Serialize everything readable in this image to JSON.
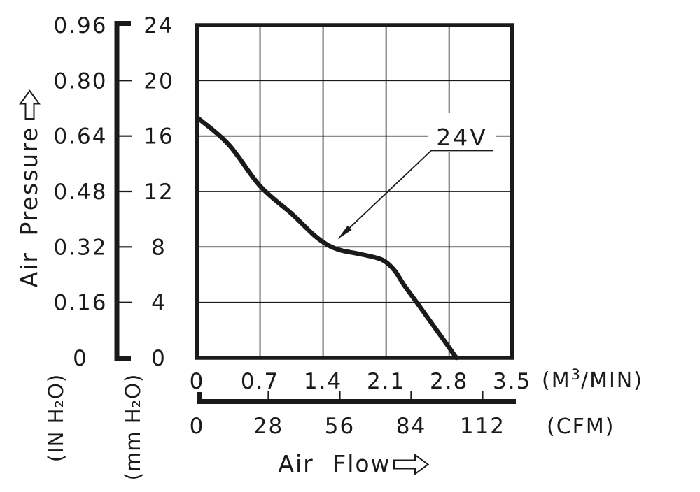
{
  "colors": {
    "ink": "#1a1a1a",
    "background": "#ffffff"
  },
  "icons": {
    "air_pressure_arrow": "hollow-up-arrow",
    "air_flow_arrow": "hollow-right-arrow",
    "annotation_pointer": "leader-arrowhead"
  },
  "chart_data": {
    "type": "line",
    "grid": true,
    "legend_position": "none",
    "series": [
      {
        "name": "24V",
        "x_unit": "M³/MIN",
        "y_unit": "mm H₂O",
        "points": [
          [
            0.0,
            17.35
          ],
          [
            0.35,
            15.4
          ],
          [
            0.7,
            12.4
          ],
          [
            1.05,
            10.4
          ],
          [
            1.3,
            8.85
          ],
          [
            1.45,
            8.15
          ],
          [
            1.6,
            7.75
          ],
          [
            1.8,
            7.5
          ],
          [
            2.0,
            7.2
          ],
          [
            2.1,
            6.9
          ],
          [
            2.2,
            6.25
          ],
          [
            2.3,
            5.25
          ],
          [
            2.44,
            4.0
          ],
          [
            2.6,
            2.55
          ],
          [
            2.75,
            1.2
          ],
          [
            2.88,
            0.0
          ]
        ]
      }
    ],
    "x_axis": {
      "label": "Air Flow",
      "scales": [
        {
          "unit": "(M³/MIN)",
          "unit_parts": {
            "pre": "(M",
            "sup": "3",
            "post": "/MIN)"
          },
          "tick_values": [
            0,
            0.7,
            1.4,
            2.1,
            2.8,
            3.5
          ],
          "tick_labels": [
            "0",
            "0.7",
            "1.4",
            "2.1",
            "2.8",
            "3.5"
          ],
          "min": 0,
          "max": 3.5
        },
        {
          "unit": "(CFM)",
          "tick_values": [
            0,
            28,
            56,
            84,
            112
          ],
          "tick_labels": [
            "0",
            "28",
            "56",
            "84",
            "112"
          ],
          "min": 0
        }
      ]
    },
    "y_axis": {
      "label": "Air Pressure",
      "scales": [
        {
          "unit": "(IN H₂O)",
          "tick_values": [
            0.96,
            0.8,
            0.64,
            0.48,
            0.32,
            0.16,
            0
          ],
          "tick_labels": [
            "0.96",
            "0.80",
            "0.64",
            "0.48",
            "0.32",
            "0.16",
            "0"
          ]
        },
        {
          "unit": "(mm H₂O)",
          "tick_values": [
            24,
            20,
            16,
            12,
            8,
            4,
            0
          ],
          "tick_labels": [
            "24",
            "20",
            "16",
            "12",
            "8",
            "4",
            "0"
          ]
        }
      ],
      "min": 0,
      "max_mm": 24
    },
    "annotation": {
      "label": "24V",
      "target_point": {
        "m3min": 1.56,
        "mm_h2o": 8.55
      }
    }
  }
}
